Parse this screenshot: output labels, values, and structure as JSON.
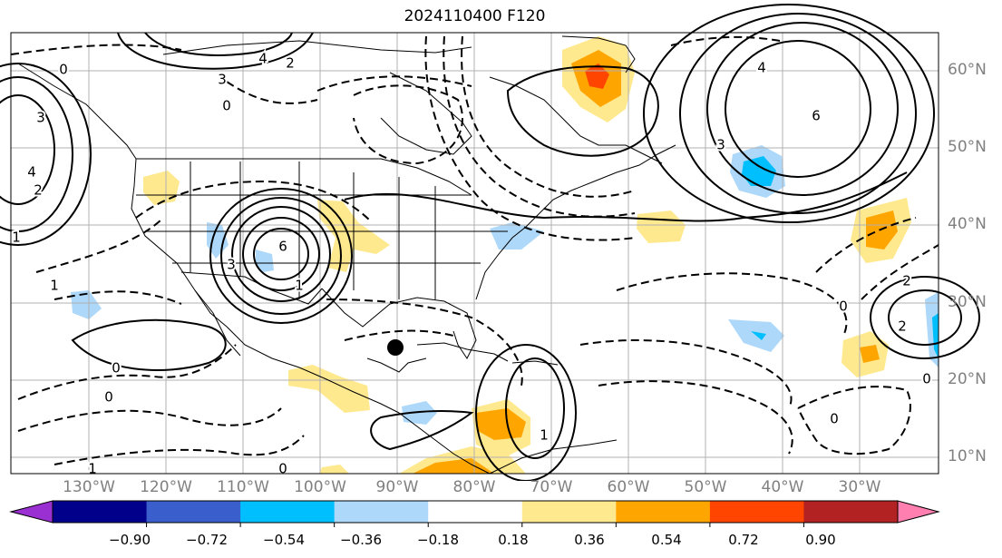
{
  "title": "2024110400 F120",
  "lat_labels": [
    "60°N",
    "50°N",
    "40°N",
    "30°N",
    "20°N",
    "10°N"
  ],
  "lon_labels": [
    "130°W",
    "120°W",
    "110°W",
    "100°W",
    "90°W",
    "80°W",
    "70°W",
    "60°W",
    "50°W",
    "40°W",
    "30°W"
  ],
  "contour_labels": [
    "0",
    "3",
    "4",
    "2",
    "0",
    "3",
    "4",
    "2",
    "1",
    "1",
    "6",
    "3",
    "1",
    "0",
    "0",
    "1",
    "0",
    "1",
    "4",
    "6",
    "3",
    "2",
    "0",
    "2",
    "0",
    "0"
  ],
  "colorbar": {
    "ticks": [
      "−0.90",
      "−0.72",
      "−0.54",
      "−0.36",
      "−0.18",
      "0.18",
      "0.36",
      "0.54",
      "0.72",
      "0.90"
    ],
    "colors": [
      "#9b30d2",
      "#00008b",
      "#3a5fcd",
      "#00bfff",
      "#add8f9",
      "#ffffff",
      "#ffe98f",
      "#ffa500",
      "#ff4500",
      "#b22222",
      "#ff80b0"
    ]
  }
}
